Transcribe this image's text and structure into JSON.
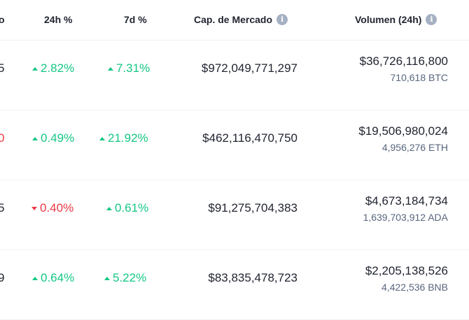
{
  "header": {
    "prev_col_fragment": "o",
    "col_24h": "24h %",
    "col_7d": "7d %",
    "col_market_cap": "Cap. de Mercado",
    "col_volume": "Volumen (24h)",
    "info_glyph": "i"
  },
  "rows": [
    {
      "edge": "5",
      "edge_color": "#222531",
      "change_24h": "2.82%",
      "dir_24h": "up",
      "change_7d": "7.31%",
      "dir_7d": "up",
      "market_cap": "$972,049,771,297",
      "volume_usd": "$36,726,116,800",
      "volume_coin": "710,618 BTC"
    },
    {
      "edge": "0",
      "edge_color": "#ea3943",
      "change_24h": "0.49%",
      "dir_24h": "up",
      "change_7d": "21.92%",
      "dir_7d": "up",
      "market_cap": "$462,116,470,750",
      "volume_usd": "$19,506,980,024",
      "volume_coin": "4,956,276 ETH"
    },
    {
      "edge": "5",
      "edge_color": "#222531",
      "change_24h": "0.40%",
      "dir_24h": "down",
      "change_7d": "0.61%",
      "dir_7d": "up",
      "market_cap": "$91,275,704,383",
      "volume_usd": "$4,673,184,734",
      "volume_coin": "1,639,703,912 ADA"
    },
    {
      "edge": "9",
      "edge_color": "#222531",
      "change_24h": "0.64%",
      "dir_24h": "up",
      "change_7d": "5.22%",
      "dir_7d": "up",
      "market_cap": "$83,835,478,723",
      "volume_usd": "$2,205,138,526",
      "volume_coin": "4,422,536 BNB"
    }
  ],
  "colors": {
    "up": "#16c784",
    "down": "#ea3943",
    "text": "#222531",
    "muted": "#58667e",
    "info": "#a6b0c3"
  }
}
